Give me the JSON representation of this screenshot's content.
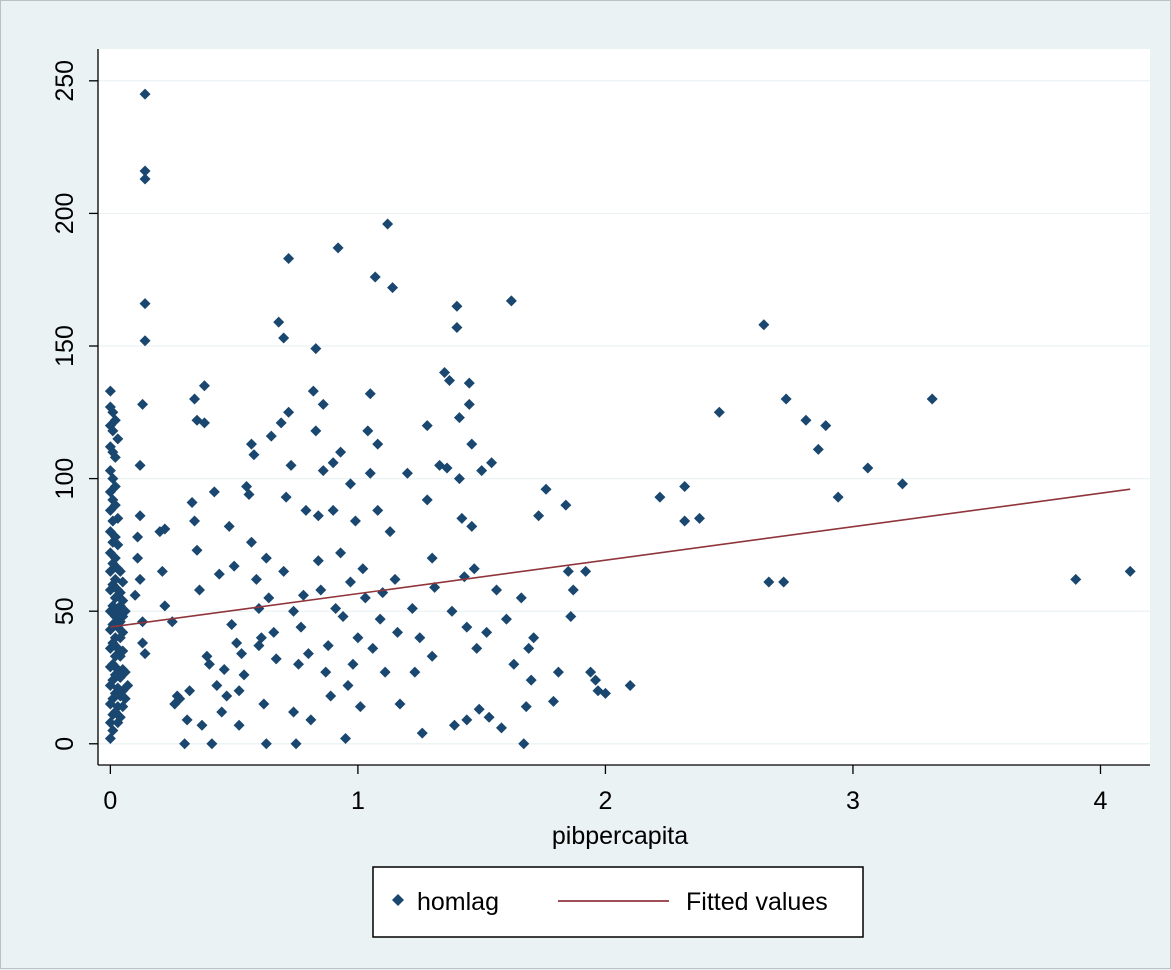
{
  "chart_data": {
    "type": "scatter",
    "xlabel": "pibpercapita",
    "ylabel": "",
    "xlim": [
      -0.05,
      4.2
    ],
    "ylim": [
      -8,
      262
    ],
    "x_ticks": [
      0,
      1,
      2,
      3,
      4
    ],
    "y_ticks": [
      0,
      50,
      100,
      150,
      200,
      250
    ],
    "grid": "horizontal",
    "legend_position": "bottom",
    "colors": {
      "scatter": "#1a476f",
      "fit": "#90353b",
      "plot_bg": "#ffffff",
      "outer_bg": "#eaf2f3",
      "grid": "#eaf2f3"
    },
    "series": [
      {
        "name": "homlag",
        "type": "scatter",
        "points": [
          [
            0.14,
            245
          ],
          [
            0.14,
            216
          ],
          [
            0.14,
            213
          ],
          [
            0.14,
            166
          ],
          [
            0.14,
            152
          ],
          [
            0.13,
            128
          ],
          [
            0.12,
            105
          ],
          [
            0.12,
            86
          ],
          [
            0.11,
            78
          ],
          [
            0.12,
            62
          ],
          [
            0.13,
            46
          ],
          [
            0.13,
            38
          ],
          [
            0.1,
            56
          ],
          [
            0.11,
            70
          ],
          [
            0.14,
            34
          ],
          [
            0.0,
            133
          ],
          [
            0.0,
            127
          ],
          [
            0.0,
            120
          ],
          [
            0.0,
            112
          ],
          [
            0.0,
            103
          ],
          [
            0.0,
            95
          ],
          [
            0.0,
            88
          ],
          [
            0.0,
            80
          ],
          [
            0.0,
            72
          ],
          [
            0.0,
            65
          ],
          [
            0.0,
            58
          ],
          [
            0.0,
            50
          ],
          [
            0.0,
            43
          ],
          [
            0.0,
            36
          ],
          [
            0.0,
            29
          ],
          [
            0.0,
            22
          ],
          [
            0.0,
            15
          ],
          [
            0.0,
            8
          ],
          [
            0.0,
            2
          ],
          [
            0.01,
            125
          ],
          [
            0.01,
            118
          ],
          [
            0.01,
            110
          ],
          [
            0.01,
            100
          ],
          [
            0.01,
            92
          ],
          [
            0.01,
            84
          ],
          [
            0.01,
            76
          ],
          [
            0.01,
            68
          ],
          [
            0.01,
            60
          ],
          [
            0.01,
            52
          ],
          [
            0.01,
            45
          ],
          [
            0.01,
            38
          ],
          [
            0.01,
            30
          ],
          [
            0.01,
            24
          ],
          [
            0.01,
            17
          ],
          [
            0.01,
            11
          ],
          [
            0.01,
            5
          ],
          [
            0.02,
            122
          ],
          [
            0.02,
            108
          ],
          [
            0.02,
            97
          ],
          [
            0.02,
            90
          ],
          [
            0.02,
            78
          ],
          [
            0.02,
            70
          ],
          [
            0.02,
            62
          ],
          [
            0.02,
            55
          ],
          [
            0.02,
            48
          ],
          [
            0.02,
            40
          ],
          [
            0.02,
            33
          ],
          [
            0.02,
            26
          ],
          [
            0.02,
            19
          ],
          [
            0.02,
            12
          ],
          [
            0.03,
            115
          ],
          [
            0.03,
            85
          ],
          [
            0.03,
            75
          ],
          [
            0.03,
            66
          ],
          [
            0.03,
            58
          ],
          [
            0.03,
            50
          ],
          [
            0.03,
            44
          ],
          [
            0.03,
            36
          ],
          [
            0.03,
            28
          ],
          [
            0.03,
            21
          ],
          [
            0.03,
            14
          ],
          [
            0.03,
            8
          ],
          [
            0.04,
            65
          ],
          [
            0.04,
            57
          ],
          [
            0.04,
            52
          ],
          [
            0.04,
            46
          ],
          [
            0.04,
            40
          ],
          [
            0.04,
            33
          ],
          [
            0.04,
            25
          ],
          [
            0.04,
            18
          ],
          [
            0.04,
            10
          ],
          [
            0.05,
            61
          ],
          [
            0.05,
            54
          ],
          [
            0.05,
            48
          ],
          [
            0.05,
            42
          ],
          [
            0.05,
            35
          ],
          [
            0.05,
            28
          ],
          [
            0.05,
            20
          ],
          [
            0.05,
            14
          ],
          [
            0.06,
            50
          ],
          [
            0.06,
            27
          ],
          [
            0.06,
            17
          ],
          [
            0.07,
            22
          ],
          [
            0.2,
            80
          ],
          [
            0.22,
            81
          ],
          [
            0.21,
            65
          ],
          [
            0.25,
            46
          ],
          [
            0.22,
            52
          ],
          [
            0.27,
            18
          ],
          [
            0.26,
            15
          ],
          [
            0.28,
            17
          ],
          [
            0.3,
            0
          ],
          [
            0.31,
            9
          ],
          [
            0.32,
            20
          ],
          [
            0.33,
            91
          ],
          [
            0.34,
            130
          ],
          [
            0.35,
            122
          ],
          [
            0.34,
            84
          ],
          [
            0.35,
            73
          ],
          [
            0.36,
            58
          ],
          [
            0.37,
            7
          ],
          [
            0.38,
            135
          ],
          [
            0.38,
            121
          ],
          [
            0.39,
            33
          ],
          [
            0.4,
            30
          ],
          [
            0.41,
            0
          ],
          [
            0.42,
            95
          ],
          [
            0.43,
            22
          ],
          [
            0.44,
            64
          ],
          [
            0.45,
            12
          ],
          [
            0.46,
            28
          ],
          [
            0.47,
            18
          ],
          [
            0.48,
            82
          ],
          [
            0.49,
            45
          ],
          [
            0.5,
            67
          ],
          [
            0.51,
            38
          ],
          [
            0.52,
            20
          ],
          [
            0.52,
            7
          ],
          [
            0.53,
            34
          ],
          [
            0.54,
            26
          ],
          [
            0.55,
            97
          ],
          [
            0.56,
            94
          ],
          [
            0.57,
            76
          ],
          [
            0.57,
            113
          ],
          [
            0.58,
            109
          ],
          [
            0.59,
            62
          ],
          [
            0.6,
            51
          ],
          [
            0.6,
            37
          ],
          [
            0.61,
            40
          ],
          [
            0.62,
            15
          ],
          [
            0.63,
            70
          ],
          [
            0.63,
            0
          ],
          [
            0.64,
            55
          ],
          [
            0.65,
            116
          ],
          [
            0.66,
            42
          ],
          [
            0.67,
            32
          ],
          [
            0.68,
            159
          ],
          [
            0.69,
            121
          ],
          [
            0.7,
            153
          ],
          [
            0.7,
            65
          ],
          [
            0.71,
            93
          ],
          [
            0.72,
            183
          ],
          [
            0.72,
            125
          ],
          [
            0.73,
            105
          ],
          [
            0.74,
            50
          ],
          [
            0.74,
            12
          ],
          [
            0.75,
            0
          ],
          [
            0.76,
            30
          ],
          [
            0.77,
            44
          ],
          [
            0.78,
            56
          ],
          [
            0.79,
            88
          ],
          [
            0.8,
            34
          ],
          [
            0.81,
            9
          ],
          [
            0.82,
            133
          ],
          [
            0.83,
            149
          ],
          [
            0.83,
            118
          ],
          [
            0.84,
            86
          ],
          [
            0.84,
            69
          ],
          [
            0.85,
            58
          ],
          [
            0.86,
            128
          ],
          [
            0.86,
            103
          ],
          [
            0.87,
            27
          ],
          [
            0.88,
            37
          ],
          [
            0.89,
            18
          ],
          [
            0.9,
            106
          ],
          [
            0.9,
            88
          ],
          [
            0.91,
            51
          ],
          [
            0.92,
            187
          ],
          [
            0.93,
            110
          ],
          [
            0.93,
            72
          ],
          [
            0.94,
            48
          ],
          [
            0.95,
            2
          ],
          [
            0.96,
            22
          ],
          [
            0.97,
            98
          ],
          [
            0.97,
            61
          ],
          [
            0.98,
            30
          ],
          [
            0.99,
            84
          ],
          [
            1.0,
            40
          ],
          [
            1.01,
            14
          ],
          [
            1.02,
            66
          ],
          [
            1.03,
            55
          ],
          [
            1.04,
            118
          ],
          [
            1.05,
            132
          ],
          [
            1.05,
            102
          ],
          [
            1.06,
            36
          ],
          [
            1.07,
            176
          ],
          [
            1.08,
            113
          ],
          [
            1.08,
            88
          ],
          [
            1.09,
            47
          ],
          [
            1.1,
            57
          ],
          [
            1.11,
            27
          ],
          [
            1.12,
            196
          ],
          [
            1.13,
            80
          ],
          [
            1.14,
            172
          ],
          [
            1.15,
            62
          ],
          [
            1.16,
            42
          ],
          [
            1.17,
            15
          ],
          [
            1.2,
            102
          ],
          [
            1.22,
            51
          ],
          [
            1.23,
            27
          ],
          [
            1.25,
            40
          ],
          [
            1.26,
            4
          ],
          [
            1.28,
            120
          ],
          [
            1.28,
            92
          ],
          [
            1.3,
            70
          ],
          [
            1.3,
            33
          ],
          [
            1.31,
            59
          ],
          [
            1.33,
            105
          ],
          [
            1.35,
            140
          ],
          [
            1.36,
            104
          ],
          [
            1.37,
            137
          ],
          [
            1.38,
            50
          ],
          [
            1.39,
            7
          ],
          [
            1.4,
            157
          ],
          [
            1.4,
            165
          ],
          [
            1.41,
            123
          ],
          [
            1.41,
            100
          ],
          [
            1.42,
            85
          ],
          [
            1.43,
            63
          ],
          [
            1.44,
            44
          ],
          [
            1.44,
            9
          ],
          [
            1.45,
            136
          ],
          [
            1.45,
            128
          ],
          [
            1.46,
            113
          ],
          [
            1.46,
            82
          ],
          [
            1.47,
            66
          ],
          [
            1.48,
            36
          ],
          [
            1.49,
            13
          ],
          [
            1.5,
            103
          ],
          [
            1.52,
            42
          ],
          [
            1.53,
            10
          ],
          [
            1.54,
            106
          ],
          [
            1.56,
            58
          ],
          [
            1.58,
            6
          ],
          [
            1.6,
            47
          ],
          [
            1.62,
            167
          ],
          [
            1.63,
            30
          ],
          [
            1.66,
            55
          ],
          [
            1.67,
            0
          ],
          [
            1.68,
            14
          ],
          [
            1.69,
            36
          ],
          [
            1.7,
            24
          ],
          [
            1.71,
            40
          ],
          [
            1.73,
            86
          ],
          [
            1.76,
            96
          ],
          [
            1.79,
            16
          ],
          [
            1.81,
            27
          ],
          [
            1.84,
            90
          ],
          [
            1.85,
            65
          ],
          [
            1.86,
            48
          ],
          [
            1.87,
            58
          ],
          [
            1.92,
            65
          ],
          [
            1.94,
            27
          ],
          [
            1.96,
            24
          ],
          [
            1.97,
            20
          ],
          [
            2.0,
            19
          ],
          [
            2.1,
            22
          ],
          [
            2.22,
            93
          ],
          [
            2.32,
            97
          ],
          [
            2.32,
            84
          ],
          [
            2.38,
            85
          ],
          [
            2.46,
            125
          ],
          [
            2.64,
            158
          ],
          [
            2.66,
            61
          ],
          [
            2.72,
            61
          ],
          [
            2.73,
            130
          ],
          [
            2.81,
            122
          ],
          [
            2.86,
            111
          ],
          [
            2.89,
            120
          ],
          [
            2.94,
            93
          ],
          [
            3.06,
            104
          ],
          [
            3.2,
            98
          ],
          [
            3.32,
            130
          ],
          [
            3.9,
            62
          ],
          [
            4.12,
            65
          ]
        ]
      },
      {
        "name": "Fitted values",
        "type": "line",
        "x": [
          0,
          4.12
        ],
        "y": [
          44,
          96
        ]
      }
    ]
  },
  "legend": {
    "items": [
      {
        "label": "homlag"
      },
      {
        "label": "Fitted values"
      }
    ]
  }
}
